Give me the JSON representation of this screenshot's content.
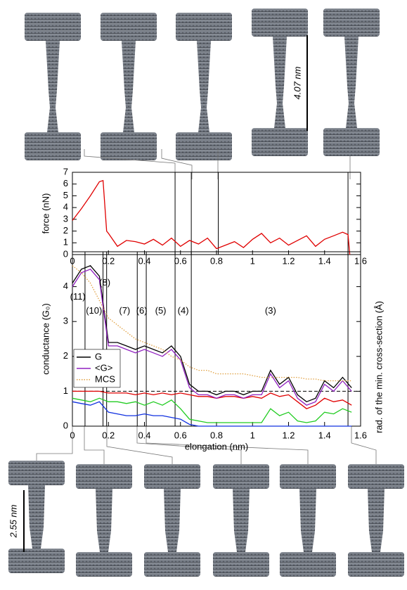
{
  "chart_data": [
    {
      "type": "line",
      "y_label": "force (nN)",
      "x": [
        0,
        0.05,
        0.1,
        0.15,
        0.17,
        0.19,
        0.2,
        0.25,
        0.3,
        0.35,
        0.4,
        0.45,
        0.5,
        0.55,
        0.6,
        0.65,
        0.7,
        0.75,
        0.8,
        0.85,
        0.9,
        0.95,
        1.0,
        1.05,
        1.1,
        1.15,
        1.2,
        1.25,
        1.3,
        1.35,
        1.4,
        1.45,
        1.5,
        1.53,
        1.54
      ],
      "series": [
        {
          "color": "#e00000",
          "values": [
            2.9,
            3.9,
            5,
            6.2,
            6.3,
            2.0,
            1.8,
            0.7,
            1.2,
            1.1,
            0.9,
            1.3,
            0.8,
            1.4,
            0.7,
            1.2,
            0.9,
            1.4,
            0.5,
            0.8,
            1.1,
            0.6,
            1.3,
            1.8,
            1.0,
            1.4,
            0.8,
            1.2,
            1.6,
            0.7,
            1.3,
            1.6,
            1.9,
            1.7,
            0
          ]
        }
      ],
      "xlim": [
        0,
        1.6
      ],
      "xticks": [
        0,
        0.2,
        0.4,
        0.6,
        0.8,
        1,
        1.2,
        1.4,
        1.6
      ],
      "ylim": [
        0,
        7
      ],
      "yticks": [
        0,
        1,
        2,
        3,
        4,
        5,
        6,
        7
      ],
      "markers": [
        0.57,
        0.66,
        0.81,
        1.53
      ]
    },
    {
      "type": "line",
      "y_label": "conductance (G₀)",
      "x_label": "elongation (nm)",
      "y2_label": "rad. of the min. cross-section (Å)",
      "x": [
        0,
        0.05,
        0.1,
        0.15,
        0.2,
        0.25,
        0.3,
        0.35,
        0.4,
        0.45,
        0.5,
        0.55,
        0.6,
        0.65,
        0.7,
        0.75,
        0.8,
        0.85,
        0.9,
        0.95,
        1.0,
        1.05,
        1.1,
        1.15,
        1.2,
        1.25,
        1.3,
        1.35,
        1.4,
        1.45,
        1.5,
        1.55
      ],
      "series": [
        {
          "color": "#e00000",
          "values": [
            1,
            1,
            1,
            1,
            0.95,
            0.95,
            0.95,
            0.9,
            0.95,
            0.9,
            0.95,
            0.9,
            0.95,
            0.9,
            0.85,
            0.85,
            0.8,
            0.85,
            0.85,
            0.8,
            0.85,
            0.8,
            0.95,
            0.85,
            0.9,
            0.7,
            0.5,
            0.6,
            0.8,
            0.7,
            0.75,
            0.6
          ]
        },
        {
          "color": "#22cc22",
          "values": [
            0.8,
            0.75,
            0.7,
            0.8,
            0.7,
            0.7,
            0.65,
            0.7,
            0.6,
            0.7,
            0.6,
            0.75,
            0.5,
            0.2,
            0.15,
            0.1,
            0.1,
            0.1,
            0.1,
            0.1,
            0.1,
            0.1,
            0.5,
            0.3,
            0.4,
            0.15,
            0.1,
            0.15,
            0.4,
            0.35,
            0.5,
            0.4
          ]
        },
        {
          "color": "#1030e0",
          "values": [
            0.7,
            0.65,
            0.6,
            0.7,
            0.4,
            0.35,
            0.3,
            0.3,
            0.35,
            0.3,
            0.3,
            0.25,
            0.2,
            0.05,
            0,
            0,
            0,
            0,
            0,
            0,
            0,
            0,
            0,
            0,
            0,
            0,
            0,
            0,
            0,
            0,
            0,
            0
          ]
        },
        {
          "name": "G",
          "color": "#000000",
          "values": [
            4.1,
            4.5,
            4.6,
            4.3,
            2.4,
            2.4,
            2.3,
            2.2,
            2.3,
            2.2,
            2.1,
            2.3,
            2.0,
            1.2,
            1.0,
            1.0,
            0.9,
            1.0,
            1.0,
            0.9,
            1.0,
            1.0,
            1.6,
            1.2,
            1.4,
            0.9,
            0.7,
            0.8,
            1.3,
            1.1,
            1.4,
            1.1
          ]
        },
        {
          "name": "<G>",
          "color": "#9020c0",
          "values": [
            4.0,
            4.4,
            4.5,
            4.2,
            2.3,
            2.3,
            2.2,
            2.1,
            2.2,
            2.1,
            2.0,
            2.2,
            1.9,
            1.1,
            0.9,
            0.9,
            0.8,
            0.9,
            0.9,
            0.8,
            0.9,
            0.9,
            1.5,
            1.1,
            1.3,
            0.8,
            0.6,
            0.7,
            1.2,
            1.0,
            1.3,
            1.0
          ]
        },
        {
          "name": "MCS",
          "color": "#e0a040",
          "style": "dotted",
          "values": [
            4.6,
            4.4,
            4.1,
            3.6,
            3.1,
            2.9,
            2.7,
            2.5,
            2.4,
            2.3,
            2.2,
            2.0,
            1.9,
            1.7,
            1.6,
            1.6,
            1.5,
            1.5,
            1.5,
            1.5,
            1.45,
            1.4,
            1.4,
            1.4,
            1.4,
            1.4,
            1.35,
            1.35,
            1.3,
            1.3,
            1.3,
            1.3
          ]
        }
      ],
      "hline": 1,
      "xlim": [
        0,
        1.6
      ],
      "xticks": [
        0,
        0.2,
        0.4,
        0.6,
        0.8,
        1,
        1.2,
        1.4,
        1.6
      ],
      "ylim": [
        0,
        5
      ],
      "yticks": [
        0,
        1,
        2,
        3,
        4
      ],
      "markers": [
        0.07,
        0.17,
        0.19,
        0.36,
        0.41,
        0.57,
        0.66,
        1.53
      ],
      "regions": [
        {
          "label": "(11)",
          "x": 0.03,
          "y": 3.7
        },
        {
          "label": "(10)",
          "x": 0.12,
          "y": 3.3
        },
        {
          "label": "(8)",
          "x": 0.18,
          "y": 4.1
        },
        {
          "label": "(7)",
          "x": 0.29,
          "y": 3.3
        },
        {
          "label": "(6)",
          "x": 0.385,
          "y": 3.3
        },
        {
          "label": "(5)",
          "x": 0.49,
          "y": 3.3
        },
        {
          "label": "(4)",
          "x": 0.615,
          "y": 3.3
        },
        {
          "label": "(3)",
          "x": 1.1,
          "y": 3.3
        }
      ]
    }
  ],
  "annotations": {
    "top": "4.07 nm",
    "bottom": "2.55 nm"
  }
}
